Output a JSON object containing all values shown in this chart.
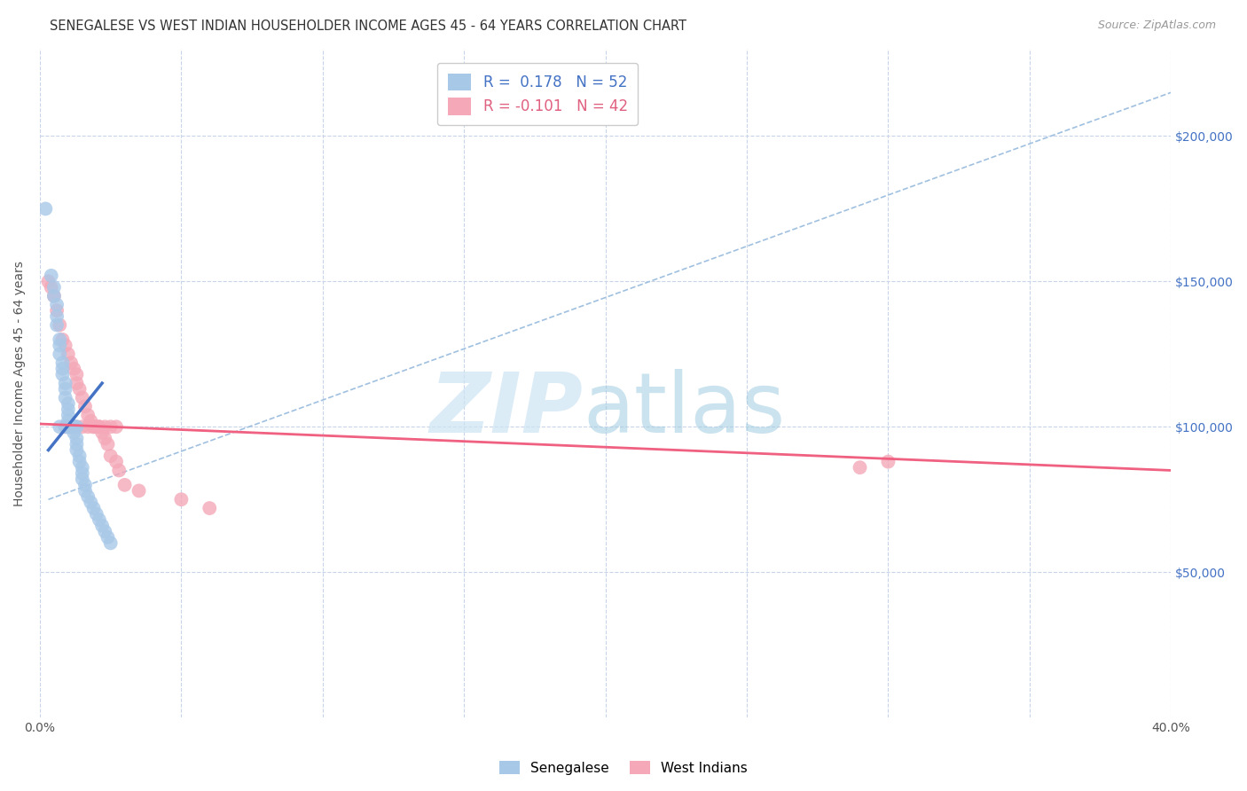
{
  "title": "SENEGALESE VS WEST INDIAN HOUSEHOLDER INCOME AGES 45 - 64 YEARS CORRELATION CHART",
  "source": "Source: ZipAtlas.com",
  "ylabel": "Householder Income Ages 45 - 64 years",
  "xlim": [
    0.0,
    0.4
  ],
  "ylim": [
    0,
    230000
  ],
  "ytick_values": [
    50000,
    100000,
    150000,
    200000
  ],
  "color_senegalese": "#a8c8e8",
  "color_west_indian": "#f4a8b8",
  "line_color_senegalese": "#4472c4",
  "line_color_west_indian": "#f06080",
  "dashed_line_color": "#a0c0e0",
  "background_color": "#ffffff",
  "grid_color": "#c8d4e8",
  "senegalese_x": [
    0.002,
    0.004,
    0.005,
    0.005,
    0.006,
    0.006,
    0.006,
    0.007,
    0.007,
    0.007,
    0.008,
    0.008,
    0.008,
    0.009,
    0.009,
    0.009,
    0.01,
    0.01,
    0.01,
    0.01,
    0.01,
    0.011,
    0.011,
    0.011,
    0.012,
    0.012,
    0.012,
    0.013,
    0.013,
    0.013,
    0.014,
    0.014,
    0.015,
    0.015,
    0.015,
    0.016,
    0.016,
    0.017,
    0.018,
    0.019,
    0.02,
    0.021,
    0.022,
    0.023,
    0.024,
    0.025,
    0.007,
    0.009,
    0.01,
    0.011,
    0.012,
    0.013
  ],
  "senegalese_y": [
    175000,
    152000,
    148000,
    145000,
    142000,
    138000,
    135000,
    130000,
    128000,
    125000,
    122000,
    120000,
    118000,
    115000,
    113000,
    110000,
    108000,
    106000,
    104000,
    102000,
    100000,
    100000,
    100000,
    100000,
    100000,
    100000,
    98000,
    96000,
    94000,
    92000,
    90000,
    88000,
    86000,
    84000,
    82000,
    80000,
    78000,
    76000,
    74000,
    72000,
    70000,
    68000,
    66000,
    64000,
    62000,
    60000,
    100000,
    100000,
    100000,
    100000,
    100000,
    100000
  ],
  "west_indian_x": [
    0.003,
    0.004,
    0.005,
    0.006,
    0.007,
    0.008,
    0.009,
    0.01,
    0.011,
    0.012,
    0.013,
    0.013,
    0.014,
    0.015,
    0.016,
    0.017,
    0.018,
    0.019,
    0.02,
    0.021,
    0.022,
    0.023,
    0.024,
    0.025,
    0.027,
    0.028,
    0.03,
    0.035,
    0.05,
    0.06,
    0.009,
    0.011,
    0.013,
    0.015,
    0.017,
    0.019,
    0.021,
    0.023,
    0.025,
    0.027,
    0.3,
    0.29
  ],
  "west_indian_y": [
    150000,
    148000,
    145000,
    140000,
    135000,
    130000,
    128000,
    125000,
    122000,
    120000,
    118000,
    115000,
    113000,
    110000,
    107000,
    104000,
    102000,
    100000,
    100000,
    100000,
    98000,
    96000,
    94000,
    90000,
    88000,
    85000,
    80000,
    78000,
    75000,
    72000,
    100000,
    100000,
    100000,
    100000,
    100000,
    100000,
    100000,
    100000,
    100000,
    100000,
    88000,
    86000
  ],
  "sen_line_x": [
    0.003,
    0.022
  ],
  "sen_line_y": [
    92000,
    115000
  ],
  "wi_line_x": [
    0.0,
    0.4
  ],
  "wi_line_y": [
    101000,
    85000
  ],
  "dash_line_x": [
    0.003,
    0.4
  ],
  "dash_line_y": [
    75000,
    215000
  ]
}
